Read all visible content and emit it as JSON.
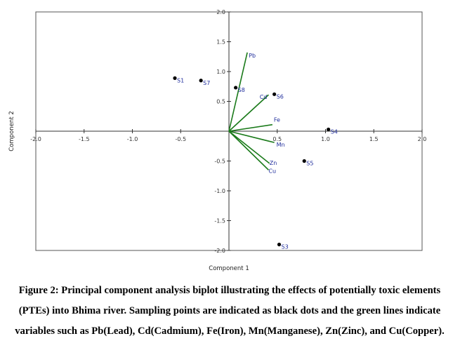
{
  "chart_data": {
    "type": "scatter",
    "xlabel": "Component 1",
    "ylabel": "Component 2",
    "xlim": [
      -2.0,
      2.0
    ],
    "ylim": [
      -2.0,
      2.0
    ],
    "x_ticks": [
      "-2.0",
      "-1.5",
      "-1.0",
      "-0.5",
      "0.5",
      "1.0",
      "1.5",
      "2.0"
    ],
    "y_ticks": [
      "2.0",
      "1.5",
      "1.0",
      "0.5",
      "-0.5",
      "-1.0",
      "-1.5",
      "-2.0"
    ],
    "x_tick_values": [
      -2.0,
      -1.5,
      -1.0,
      -0.5,
      0.5,
      1.0,
      1.5,
      2.0
    ],
    "y_tick_values": [
      2.0,
      1.5,
      1.0,
      0.5,
      -0.5,
      -1.0,
      -1.5,
      -2.0
    ],
    "grid": false,
    "points": [
      {
        "label": "S1",
        "x": -0.56,
        "y": 0.89
      },
      {
        "label": "S7",
        "x": -0.29,
        "y": 0.85
      },
      {
        "label": "S8",
        "x": 0.07,
        "y": 0.73
      },
      {
        "label": "S6",
        "x": 0.47,
        "y": 0.62
      },
      {
        "label": "S4",
        "x": 1.03,
        "y": 0.03
      },
      {
        "label": "S5",
        "x": 0.78,
        "y": -0.5
      },
      {
        "label": "S3",
        "x": 0.52,
        "y": -1.9
      }
    ],
    "vectors": [
      {
        "label": "Pb",
        "x": 0.19,
        "y": 1.32
      },
      {
        "label": "Cd",
        "x": 0.41,
        "y": 0.61
      },
      {
        "label": "Fe",
        "x": 0.45,
        "y": 0.11
      },
      {
        "label": "Mn",
        "x": 0.47,
        "y": -0.19
      },
      {
        "label": "Zn",
        "x": 0.42,
        "y": -0.54
      },
      {
        "label": "Cu",
        "x": 0.41,
        "y": -0.65
      }
    ],
    "colors": {
      "points": "#000000",
      "vectors": "#1a7a1a",
      "labels": "#1f2d9c",
      "axes": "#333333"
    }
  },
  "caption": "Figure 2: Principal component analysis biplot illustrating the effects of potentially toxic elements (PTEs) into Bhima river. Sampling points are indicated as black dots and the green lines indicate variables such as Pb(Lead), Cd(Cadmium), Fe(Iron), Mn(Manganese), Zn(Zinc), and Cu(Copper)."
}
